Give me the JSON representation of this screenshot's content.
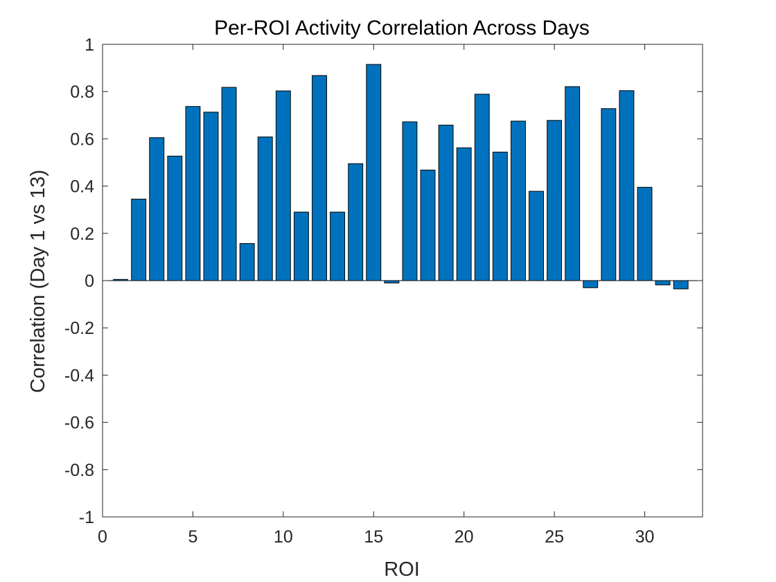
{
  "chart_data": {
    "type": "bar",
    "title": "Per-ROI Activity Correlation Across Days",
    "xlabel": "ROI",
    "ylabel": "Correlation (Day 1 vs 13)",
    "xlim": [
      0,
      33.2
    ],
    "ylim": [
      -1,
      1
    ],
    "xticks": [
      0,
      5,
      10,
      15,
      20,
      25,
      30
    ],
    "xtick_labels": [
      "0",
      "5",
      "10",
      "15",
      "20",
      "25",
      "30"
    ],
    "yticks": [
      -1,
      -0.8,
      -0.6,
      -0.4,
      -0.2,
      0,
      0.2,
      0.4,
      0.6,
      0.8,
      1
    ],
    "ytick_labels": [
      "-1",
      "-0.8",
      "-0.6",
      "-0.4",
      "-0.2",
      "0",
      "0.2",
      "0.4",
      "0.6",
      "0.8",
      "1"
    ],
    "grid": false,
    "bar_color": "#0072BD",
    "bar_edge_color": "#000000",
    "x": [
      1,
      2,
      3,
      4,
      5,
      6,
      7,
      8,
      9,
      10,
      11,
      12,
      13,
      14,
      15,
      16,
      17,
      18,
      19,
      20,
      21,
      22,
      23,
      24,
      25,
      26,
      27,
      28,
      29,
      30,
      31,
      32
    ],
    "values": [
      0.005,
      0.345,
      0.605,
      0.527,
      0.737,
      0.713,
      0.818,
      0.157,
      0.608,
      0.803,
      0.29,
      0.868,
      0.29,
      0.495,
      0.915,
      -0.01,
      0.672,
      0.468,
      0.658,
      0.562,
      0.789,
      0.544,
      0.675,
      0.378,
      0.678,
      0.821,
      -0.03,
      0.728,
      0.804,
      0.395,
      -0.018,
      -0.035
    ]
  }
}
